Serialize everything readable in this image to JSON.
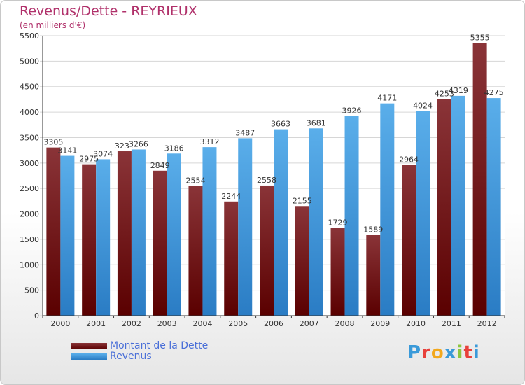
{
  "header": {
    "title": "Revenus/Dette - REYRIEUX",
    "subtitle": "(en milliers d'€)"
  },
  "brand": {
    "letters": [
      "P",
      "r",
      "o",
      "x",
      "i",
      "t",
      "i"
    ],
    "colors": [
      "#3a9ad9",
      "#e8413b",
      "#f2a81d",
      "#3a9ad9",
      "#8cc63f",
      "#e8413b",
      "#3a9ad9"
    ]
  },
  "chart_data": {
    "type": "bar",
    "title": "Revenus/Dette - REYRIEUX",
    "subtitle": "(en milliers d'€)",
    "categories": [
      "2000",
      "2001",
      "2002",
      "2003",
      "2004",
      "2005",
      "2006",
      "2007",
      "2008",
      "2009",
      "2010",
      "2011",
      "2012"
    ],
    "series": [
      {
        "name": "Montant de la Dette",
        "color": "#6e1a1a",
        "values": [
          3305,
          2975,
          3231,
          2849,
          2554,
          2244,
          2558,
          2155,
          1729,
          1589,
          2964,
          4253,
          5355
        ]
      },
      {
        "name": "Revenus",
        "color": "#3a95db",
        "values": [
          3141,
          3074,
          3266,
          3186,
          3312,
          3487,
          3663,
          3681,
          3926,
          4171,
          4024,
          4319,
          4275
        ]
      }
    ],
    "ylim": [
      0,
      5500
    ],
    "yticks": [
      0,
      500,
      1000,
      1500,
      2000,
      2500,
      3000,
      3500,
      4000,
      4500,
      5000,
      5500
    ],
    "grid": true,
    "legend": "bottom-left"
  }
}
